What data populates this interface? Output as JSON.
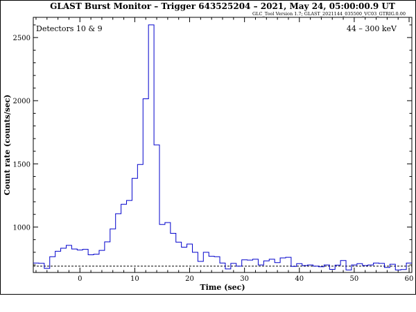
{
  "header": {
    "title": "GLAST Burst Monitor  –  Trigger 643525204  –  2021, May 24, 05:00:00.9 UT",
    "subtitle": "GLC_Tool Version 1.7; GLAST_2021144_035500_VC03_GTRIG.0.00"
  },
  "chart_data": {
    "type": "line",
    "step": true,
    "title": "GLAST Burst Monitor  –  Trigger 643525204  –  2021, May 24, 05:00:00.9 UT",
    "xlabel": "Time (sec)",
    "ylabel": "Count rate (counts/sec)",
    "xlim": [
      -8.5,
      60.5
    ],
    "ylim": [
      640,
      2660
    ],
    "x_ticks": [
      0,
      10,
      20,
      30,
      40,
      50,
      60
    ],
    "y_ticks": [
      1000,
      1500,
      2000,
      2500
    ],
    "grid": false,
    "annotations": {
      "detectors": "Detectors 10 & 9",
      "energy": "44 – 300 keV"
    },
    "background_level": 690,
    "series": [
      {
        "color": "#0000cc",
        "bin_edges": [
          -8.5,
          -7.5,
          -6.5,
          -5.5,
          -4.5,
          -3.5,
          -2.5,
          -1.5,
          -0.5,
          0.5,
          1.5,
          2.5,
          3.5,
          4.5,
          5.5,
          6.5,
          7.5,
          8.5,
          9.5,
          10.5,
          11.5,
          12.5,
          13.5,
          14.5,
          15.5,
          16.5,
          17.5,
          18.5,
          19.5,
          20.5,
          21.5,
          22.5,
          23.5,
          24.5,
          25.5,
          26.5,
          27.5,
          28.5,
          29.5,
          30.5,
          31.5,
          32.5,
          33.5,
          34.5,
          35.5,
          36.5,
          37.5,
          38.5,
          39.5,
          40.5,
          41.5,
          42.5,
          43.5,
          44.5,
          45.5,
          46.5,
          47.5,
          48.5,
          49.5,
          50.5,
          51.5,
          52.5,
          53.5,
          54.5,
          55.5,
          56.5,
          57.5,
          58.5,
          59.5,
          60.5
        ],
        "values": [
          715,
          713,
          672,
          765,
          808,
          832,
          855,
          826,
          818,
          823,
          780,
          785,
          815,
          882,
          985,
          1105,
          1180,
          1210,
          1385,
          1495,
          2015,
          2600,
          1650,
          1020,
          1035,
          950,
          880,
          840,
          865,
          800,
          728,
          800,
          768,
          765,
          715,
          668,
          712,
          690,
          740,
          738,
          745,
          700,
          732,
          745,
          718,
          755,
          760,
          688,
          710,
          695,
          700,
          690,
          685,
          700,
          665,
          698,
          735,
          660,
          700,
          710,
          695,
          700,
          715,
          712,
          680,
          705,
          660,
          663,
          715
        ]
      }
    ]
  }
}
